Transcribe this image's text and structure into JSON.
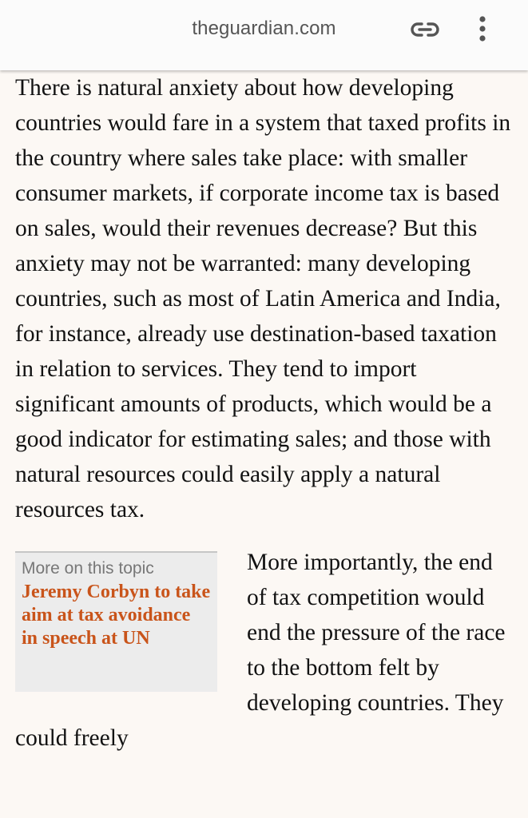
{
  "browser": {
    "domain": "theguardian.com",
    "link_icon": "link-icon",
    "menu_icon": "more-vert-icon"
  },
  "article": {
    "paragraph_1": "There is natural anxiety about how developing countries would fare in a system that taxed profits in the country where sales take place: with smaller consumer markets, if corporate income tax is based on sales, would their revenues decrease? But this anxiety may not be warranted: many developing countries, such as most of Latin America and India, for instance, already use destination-based taxation in relation to services. They tend to import significant amounts of products, which would be a good indicator for estimating sales; and those with natural resources could easily apply a natural resources tax.",
    "paragraph_2": "More importantly, the end of tax competition would end the pressure of the race to the bottom felt by developing countries. They could freely"
  },
  "related": {
    "kicker": "More on this topic",
    "title": "Jeremy Corbyn to take aim at tax avoidance in speech at UN"
  },
  "colors": {
    "link_accent": "#c9541a",
    "toolbar_bg": "#fbfbfb",
    "page_bg": "#fcf8f4"
  }
}
